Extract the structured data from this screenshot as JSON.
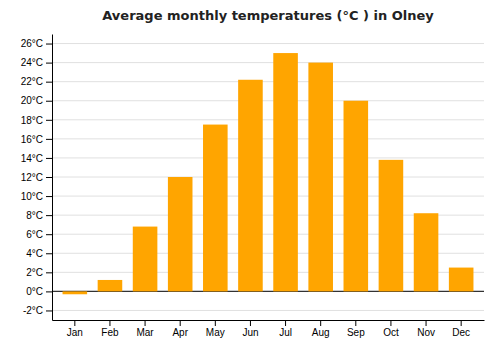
{
  "chart_data": {
    "type": "bar",
    "title": "Average monthly temperatures (°C ) in Olney",
    "categories": [
      "Jan",
      "Feb",
      "Mar",
      "Apr",
      "May",
      "Jun",
      "Jul",
      "Aug",
      "Sep",
      "Oct",
      "Nov",
      "Dec"
    ],
    "values": [
      -0.3,
      1.2,
      6.8,
      12.0,
      17.5,
      22.2,
      25.0,
      24.0,
      20.0,
      13.8,
      8.2,
      2.5
    ],
    "color": "#FFA500",
    "ylim": [
      -3,
      27
    ],
    "yticks": [
      {
        "value": -2,
        "label": "-2°C"
      },
      {
        "value": 0,
        "label": "0°C"
      },
      {
        "value": 2,
        "label": "2°C"
      },
      {
        "value": 4,
        "label": "4°C"
      },
      {
        "value": 6,
        "label": "6°C"
      },
      {
        "value": 8,
        "label": "8°C"
      },
      {
        "value": 10,
        "label": "10°C"
      },
      {
        "value": 12,
        "label": "12°C"
      },
      {
        "value": 14,
        "label": "14°C"
      },
      {
        "value": 16,
        "label": "16°C"
      },
      {
        "value": 18,
        "label": "18°C"
      },
      {
        "value": 20,
        "label": "20°C"
      },
      {
        "value": 22,
        "label": "22°C"
      },
      {
        "value": 24,
        "label": "24°C"
      },
      {
        "value": 26,
        "label": "26°C"
      }
    ],
    "grid": true
  }
}
